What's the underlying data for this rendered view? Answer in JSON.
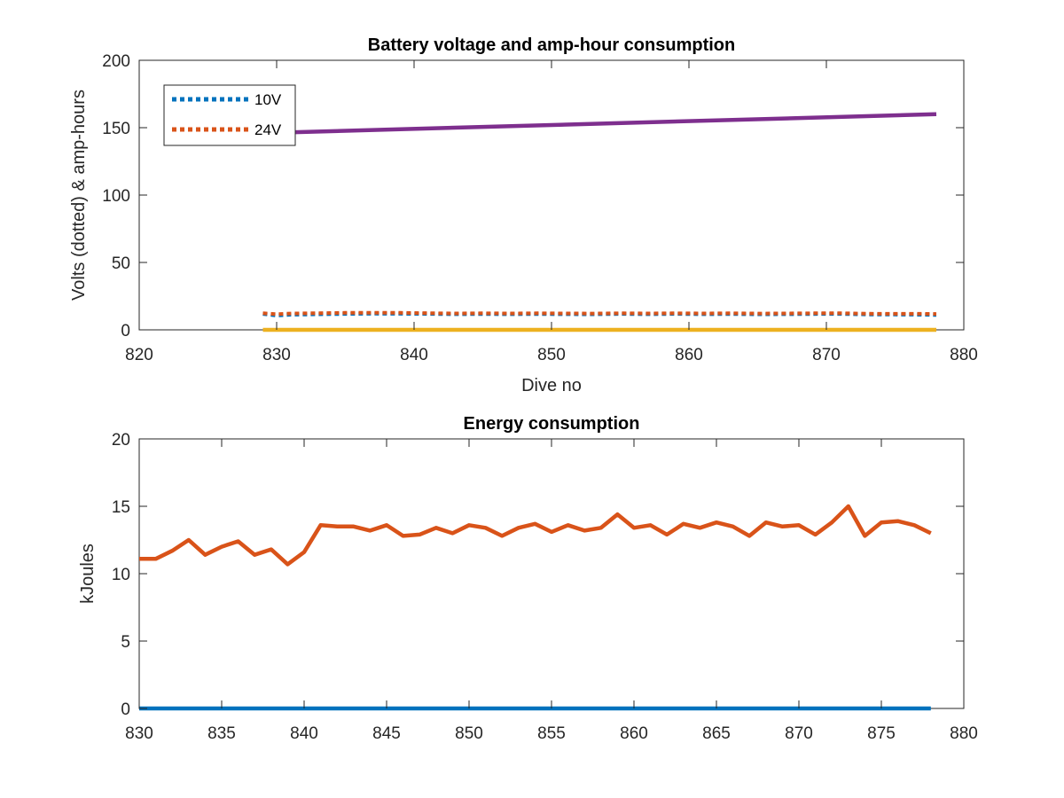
{
  "chart_data": [
    {
      "type": "line",
      "title": "Battery voltage and amp-hour consumption",
      "xlabel": "Dive no",
      "ylabel": "Volts (dotted) & amp-hours",
      "xlim": [
        820,
        880
      ],
      "ylim": [
        0,
        200
      ],
      "xticks": [
        820,
        830,
        840,
        850,
        860,
        870,
        880
      ],
      "yticks": [
        0,
        50,
        100,
        150,
        200
      ],
      "grid": false,
      "legend_position": "top-left",
      "series": [
        {
          "name": "10V",
          "style": "dotted",
          "color": "#0072BD",
          "x": [
            829,
            830,
            831,
            833,
            835,
            837,
            839,
            841,
            843,
            845,
            847,
            849,
            851,
            853,
            855,
            857,
            859,
            861,
            863,
            865,
            867,
            869,
            871,
            873,
            875,
            877,
            878
          ],
          "y": [
            11.8,
            10.6,
            11.2,
            11.5,
            11.8,
            12.0,
            11.9,
            11.8,
            11.6,
            11.7,
            11.6,
            11.7,
            11.6,
            11.5,
            11.8,
            11.6,
            11.8,
            11.6,
            11.7,
            11.5,
            11.6,
            11.7,
            11.8,
            11.4,
            11.3,
            11.2,
            11.0
          ]
        },
        {
          "name": "24V",
          "style": "dotted",
          "color": "#D95319",
          "x": [
            829,
            830,
            831,
            833,
            835,
            837,
            839,
            841,
            843,
            845,
            847,
            849,
            851,
            853,
            855,
            857,
            859,
            861,
            863,
            865,
            867,
            869,
            871,
            873,
            875,
            877,
            878
          ],
          "y": [
            12.4,
            11.6,
            12.1,
            12.4,
            12.6,
            12.7,
            12.6,
            12.4,
            12.2,
            12.3,
            12.2,
            12.3,
            12.2,
            12.1,
            12.3,
            12.2,
            12.3,
            12.2,
            12.3,
            12.1,
            12.2,
            12.3,
            12.4,
            12.0,
            11.9,
            11.9,
            11.8
          ]
        },
        {
          "style": "solid",
          "color": "#7E2F8E",
          "x": [
            829,
            878
          ],
          "y": [
            146,
            160
          ]
        },
        {
          "style": "solid",
          "color": "#EDB120",
          "x": [
            829,
            878
          ],
          "y": [
            0,
            0
          ]
        }
      ]
    },
    {
      "type": "line",
      "title": "Energy consumption",
      "xlabel": "",
      "ylabel": "kJoules",
      "xlim": [
        830,
        880
      ],
      "ylim": [
        0,
        20
      ],
      "xticks": [
        830,
        835,
        840,
        845,
        850,
        855,
        860,
        865,
        870,
        875,
        880
      ],
      "yticks": [
        0,
        5,
        10,
        15,
        20
      ],
      "grid": false,
      "series": [
        {
          "style": "solid",
          "color": "#D95319",
          "x": [
            830,
            831,
            832,
            833,
            834,
            835,
            836,
            837,
            838,
            839,
            840,
            841,
            842,
            843,
            844,
            845,
            846,
            847,
            848,
            849,
            850,
            851,
            852,
            853,
            854,
            855,
            856,
            857,
            858,
            859,
            860,
            861,
            862,
            863,
            864,
            865,
            866,
            867,
            868,
            869,
            870,
            871,
            872,
            873,
            874,
            875,
            876,
            877,
            878
          ],
          "y": [
            11.1,
            11.1,
            11.7,
            12.5,
            11.4,
            12.0,
            12.4,
            11.4,
            11.8,
            10.7,
            11.6,
            13.6,
            13.5,
            13.5,
            13.2,
            13.6,
            12.8,
            12.9,
            13.4,
            13.0,
            13.6,
            13.4,
            12.8,
            13.4,
            13.7,
            13.1,
            13.6,
            13.2,
            13.4,
            14.4,
            13.4,
            13.6,
            12.9,
            13.7,
            13.4,
            13.8,
            13.5,
            12.8,
            13.8,
            13.5,
            13.6,
            12.9,
            13.8,
            15.0,
            12.8,
            13.8,
            13.9,
            13.6,
            13.0
          ]
        },
        {
          "style": "solid",
          "color": "#0072BD",
          "x": [
            830,
            878
          ],
          "y": [
            0,
            0
          ]
        }
      ]
    }
  ]
}
